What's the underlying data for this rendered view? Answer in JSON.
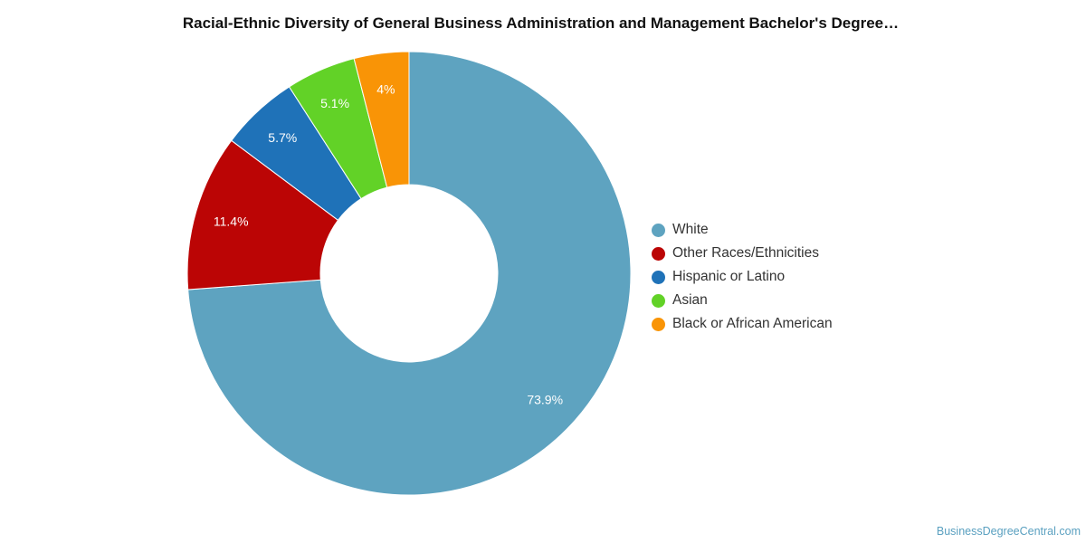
{
  "chart_data": {
    "type": "pie",
    "donut": true,
    "title": "Racial-Ethnic Diversity of General Business Administration and Management Bachelor's Degree…",
    "categories": [
      "White",
      "Other Races/Ethnicities",
      "Hispanic or Latino",
      "Asian",
      "Black or African American"
    ],
    "values": [
      73.9,
      11.4,
      5.7,
      5.1,
      4
    ],
    "labels": [
      "73.9%",
      "11.4%",
      "5.7%",
      "5.1%",
      "4%"
    ],
    "colors": [
      "#5ea3c0",
      "#bb0505",
      "#1f72b8",
      "#62d227",
      "#f99406"
    ],
    "legend_position": "right"
  },
  "credit": "BusinessDegreeCentral.com"
}
